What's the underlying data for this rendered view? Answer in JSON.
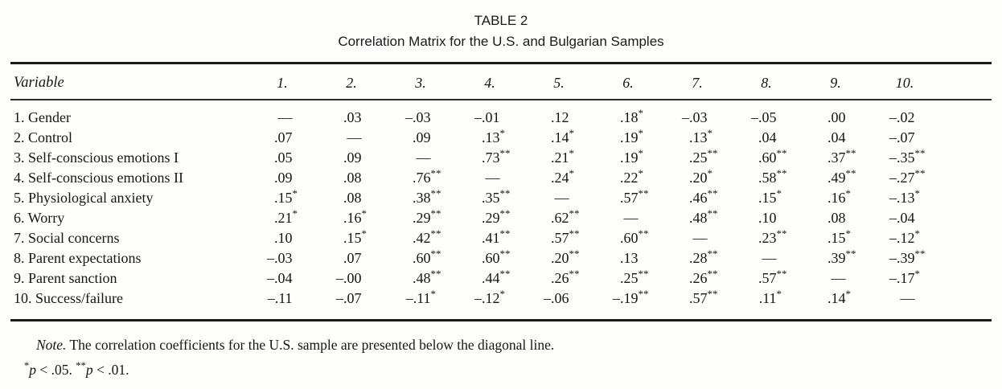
{
  "title": "TABLE 2",
  "subtitle": "Correlation Matrix for the U.S. and Bulgarian Samples",
  "table": {
    "header": {
      "variable_label": "Variable",
      "columns": [
        "1.",
        "2.",
        "3.",
        "4.",
        "5.",
        "6.",
        "7.",
        "8.",
        "9.",
        "10."
      ]
    },
    "rows": [
      {
        "label": "1. Gender",
        "values": [
          "—",
          ".03",
          "–.03",
          "–.01",
          ".12",
          ".18*",
          "–.03",
          "–.05",
          ".00",
          "–.02"
        ]
      },
      {
        "label": "2. Control",
        "values": [
          ".07",
          "—",
          ".09",
          ".13*",
          ".14*",
          ".19*",
          ".13*",
          ".04",
          ".04",
          "–.07"
        ]
      },
      {
        "label": "3. Self-conscious emotions I",
        "values": [
          ".05",
          ".09",
          "—",
          ".73**",
          ".21*",
          ".19*",
          ".25**",
          ".60**",
          ".37**",
          "–.35**"
        ]
      },
      {
        "label": "4. Self-conscious emotions II",
        "values": [
          ".09",
          ".08",
          ".76**",
          "—",
          ".24*",
          ".22*",
          ".20*",
          ".58**",
          ".49**",
          "–.27**"
        ]
      },
      {
        "label": "5. Physiological anxiety",
        "values": [
          ".15*",
          ".08",
          ".38**",
          ".35**",
          "—",
          ".57**",
          ".46**",
          ".15*",
          ".16*",
          "–.13*"
        ]
      },
      {
        "label": "6. Worry",
        "values": [
          ".21*",
          ".16*",
          ".29**",
          ".29**",
          ".62**",
          "—",
          ".48**",
          ".10",
          ".08",
          "–.04"
        ]
      },
      {
        "label": "7. Social concerns",
        "values": [
          ".10",
          ".15*",
          ".42**",
          ".41**",
          ".57**",
          ".60**",
          "—",
          ".23**",
          ".15*",
          "–.12*"
        ]
      },
      {
        "label": "8. Parent expectations",
        "values": [
          "–.03",
          ".07",
          ".60**",
          ".60**",
          ".20**",
          ".13",
          ".28**",
          "—",
          ".39**",
          "–.39**"
        ]
      },
      {
        "label": "9. Parent sanction",
        "values": [
          "–.04",
          "–.00",
          ".48**",
          ".44**",
          ".26**",
          ".25**",
          ".26**",
          ".57**",
          "—",
          "–.17*"
        ]
      },
      {
        "label": "10. Success/failure",
        "values": [
          "–.11",
          "–.07",
          "–.11*",
          "–.12*",
          "–.06",
          "–.19**",
          ".57**",
          ".11*",
          ".14*",
          "—"
        ]
      }
    ]
  },
  "note": {
    "label": "Note.",
    "body": " The correlation coefficients for the U.S. sample are presented below the diagonal line.",
    "sig": [
      {
        "stars": "*",
        "symbol": "p",
        "text": " < .05. "
      },
      {
        "stars": "**",
        "symbol": "p",
        "text": " < .01."
      }
    ]
  }
}
